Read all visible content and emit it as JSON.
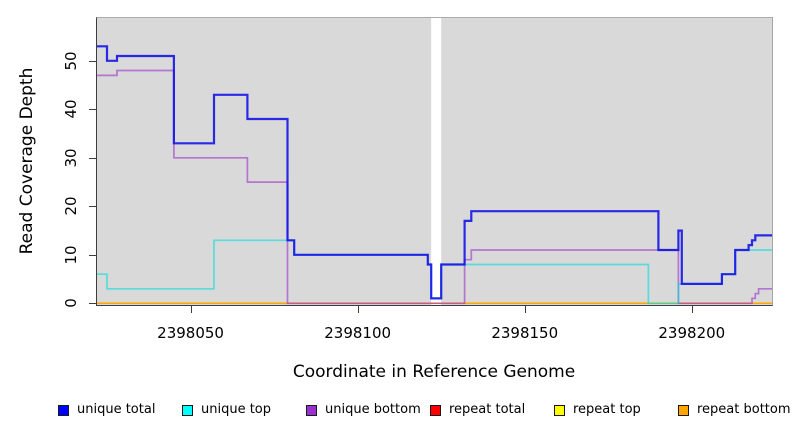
{
  "chart_data": {
    "type": "line",
    "step": "post",
    "title": "",
    "xlabel": "Coordinate in Reference Genome",
    "ylabel": "Read Coverage Depth",
    "xlim": [
      2398022,
      2398224
    ],
    "ylim": [
      0,
      58.8
    ],
    "x_ticks": [
      2398050,
      2398100,
      2398150,
      2398200
    ],
    "y_ticks": [
      0,
      10,
      20,
      30,
      40,
      50
    ],
    "panel_background": "#d9d9d9",
    "grid": "off",
    "legend_position": "bottom",
    "gap_region": {
      "x_start": 2398122,
      "x_end": 2398125,
      "color": "#ffffff"
    },
    "draw_order": [
      "repeat total",
      "repeat top",
      "repeat bottom",
      "unique bottom",
      "unique top",
      "unique total"
    ],
    "x_end": 2398224,
    "series": [
      {
        "name": "unique total",
        "legend_color": "#0000ff",
        "line_color": "#1414e6",
        "opacity": 0.9,
        "line_width": 2.2,
        "points": [
          [
            2398022,
            53
          ],
          [
            2398025,
            50
          ],
          [
            2398028,
            51
          ],
          [
            2398045,
            33
          ],
          [
            2398057,
            43
          ],
          [
            2398067,
            38
          ],
          [
            2398079,
            13
          ],
          [
            2398081,
            10
          ],
          [
            2398121,
            8
          ],
          [
            2398122,
            1
          ],
          [
            2398125,
            8
          ],
          [
            2398132,
            17
          ],
          [
            2398134,
            19
          ],
          [
            2398190,
            11
          ],
          [
            2398196,
            15
          ],
          [
            2398197,
            4
          ],
          [
            2398209,
            6
          ],
          [
            2398213,
            11
          ],
          [
            2398217,
            12
          ],
          [
            2398218,
            13
          ],
          [
            2398219,
            14
          ]
        ]
      },
      {
        "name": "unique top",
        "legend_color": "#00ffff",
        "line_color": "#00dede",
        "opacity": 0.6,
        "line_width": 1.7,
        "points": [
          [
            2398022,
            6
          ],
          [
            2398025,
            3
          ],
          [
            2398057,
            13
          ],
          [
            2398081,
            10
          ],
          [
            2398121,
            8
          ],
          [
            2398122,
            1
          ],
          [
            2398125,
            8
          ],
          [
            2398187,
            0
          ],
          [
            2398196,
            4
          ],
          [
            2398209,
            6
          ],
          [
            2398213,
            11
          ]
        ]
      },
      {
        "name": "unique bottom",
        "legend_color": "#9932cc",
        "line_color": "#9932cc",
        "opacity": 0.6,
        "line_width": 1.7,
        "points": [
          [
            2398022,
            47
          ],
          [
            2398028,
            48
          ],
          [
            2398045,
            30
          ],
          [
            2398067,
            25
          ],
          [
            2398079,
            0
          ],
          [
            2398132,
            9
          ],
          [
            2398134,
            11
          ],
          [
            2398196,
            0
          ],
          [
            2398218,
            1
          ],
          [
            2398219,
            2
          ],
          [
            2398220,
            3
          ]
        ]
      },
      {
        "name": "repeat total",
        "legend_color": "#ff0000",
        "line_color": "#ee0000",
        "opacity": 0.8,
        "line_width": 1.2,
        "points": [
          [
            2398022,
            0
          ]
        ]
      },
      {
        "name": "repeat top",
        "legend_color": "#ffff00",
        "line_color": "#f0f000",
        "opacity": 0.9,
        "line_width": 1.2,
        "points": [
          [
            2398022,
            0
          ]
        ]
      },
      {
        "name": "repeat bottom",
        "legend_color": "#ffa500",
        "line_color": "#ffa500",
        "opacity": 1,
        "line_width": 1.5,
        "points": [
          [
            2398022,
            0
          ]
        ]
      }
    ]
  }
}
